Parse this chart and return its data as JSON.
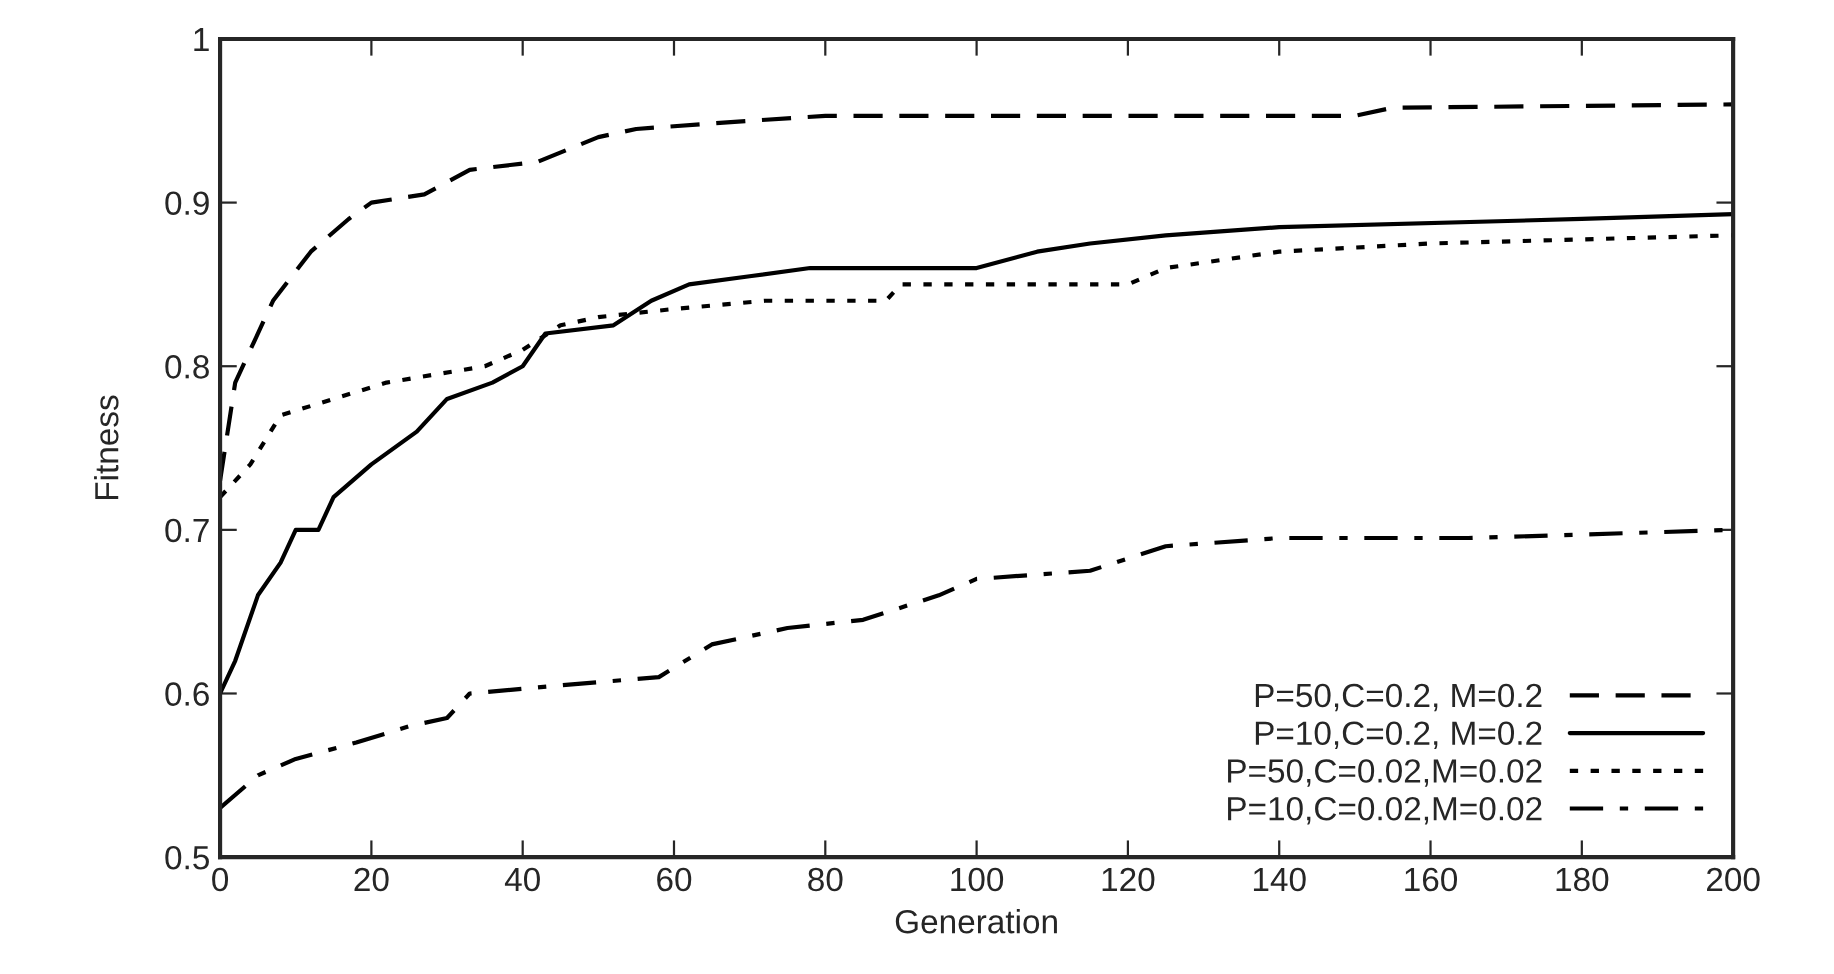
{
  "chart_data": {
    "type": "line",
    "xlabel": "Generation",
    "ylabel": "Fitness",
    "xlim": [
      0,
      200
    ],
    "ylim": [
      0.5,
      1
    ],
    "xticks": [
      0,
      20,
      40,
      60,
      80,
      100,
      120,
      140,
      160,
      180,
      200
    ],
    "yticks": [
      0.5,
      0.6,
      0.7,
      0.8,
      0.9,
      1
    ],
    "grid": false,
    "legend": "bottom right",
    "marker": "none",
    "series": [
      {
        "name": "P=50,C=0.2, M=0.2",
        "color": "#000000",
        "line_style": "dashed",
        "x": [
          0,
          2,
          7,
          12,
          17,
          20,
          27,
          33,
          42,
          50,
          55,
          70,
          80,
          150,
          155,
          200
        ],
        "values": [
          0.73,
          0.79,
          0.84,
          0.87,
          0.89,
          0.9,
          0.905,
          0.92,
          0.925,
          0.94,
          0.945,
          0.95,
          0.953,
          0.953,
          0.958,
          0.96
        ]
      },
      {
        "name": "P=10,C=0.2, M=0.2",
        "color": "#000000",
        "line_style": "solid",
        "x": [
          0,
          2,
          5,
          8,
          10,
          13,
          15,
          20,
          26,
          30,
          36,
          40,
          43,
          52,
          57,
          62,
          70,
          78,
          100,
          108,
          115,
          125,
          140,
          180,
          200
        ],
        "values": [
          0.6,
          0.62,
          0.66,
          0.68,
          0.7,
          0.7,
          0.72,
          0.74,
          0.76,
          0.78,
          0.79,
          0.8,
          0.82,
          0.825,
          0.84,
          0.85,
          0.855,
          0.86,
          0.86,
          0.87,
          0.875,
          0.88,
          0.885,
          0.89,
          0.893
        ]
      },
      {
        "name": "P=50,C=0.02,M=0.02",
        "color": "#000000",
        "line_style": "dotted",
        "x": [
          0,
          4,
          8,
          15,
          22,
          35,
          40,
          45,
          50,
          60,
          72,
          88,
          90,
          120,
          125,
          140,
          160,
          200
        ],
        "values": [
          0.72,
          0.74,
          0.77,
          0.78,
          0.79,
          0.8,
          0.81,
          0.825,
          0.83,
          0.835,
          0.84,
          0.84,
          0.85,
          0.85,
          0.86,
          0.87,
          0.875,
          0.88
        ]
      },
      {
        "name": "P=10,C=0.02,M=0.02",
        "color": "#000000",
        "line_style": "dashdot",
        "x": [
          0,
          5,
          10,
          18,
          25,
          30,
          33,
          45,
          58,
          65,
          75,
          85,
          95,
          100,
          115,
          125,
          140,
          165,
          200
        ],
        "values": [
          0.53,
          0.55,
          0.56,
          0.57,
          0.58,
          0.585,
          0.6,
          0.605,
          0.61,
          0.63,
          0.64,
          0.645,
          0.66,
          0.67,
          0.675,
          0.69,
          0.695,
          0.695,
          0.7
        ]
      }
    ]
  }
}
